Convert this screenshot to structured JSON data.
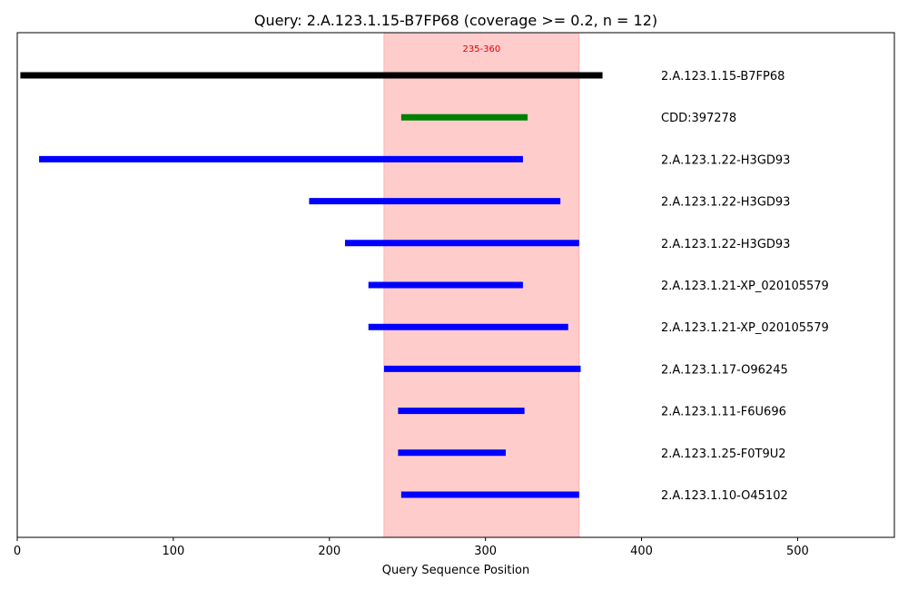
{
  "chart_data": {
    "type": "range-bars",
    "title": "Query: 2.A.123.1.15-B7FP68 (coverage >= 0.2, n = 12)",
    "xlabel": "Query Sequence Position",
    "xlim": [
      0,
      562
    ],
    "x_ticks": [
      0,
      100,
      200,
      300,
      400,
      500
    ],
    "grid": false,
    "highlight_region": {
      "label": "235-360",
      "start": 235,
      "end": 360,
      "color": "#ffcccc",
      "label_color": "#e00000"
    },
    "series": [
      {
        "label": "2.A.123.1.15-B7FP68",
        "start": 2,
        "end": 375,
        "color": "#000000"
      },
      {
        "label": "CDD:397278",
        "start": 246,
        "end": 327,
        "color": "#008000"
      },
      {
        "label": "2.A.123.1.22-H3GD93",
        "start": 14,
        "end": 324,
        "color": "#0000ff"
      },
      {
        "label": "2.A.123.1.22-H3GD93",
        "start": 187,
        "end": 348,
        "color": "#0000ff"
      },
      {
        "label": "2.A.123.1.22-H3GD93",
        "start": 210,
        "end": 360,
        "color": "#0000ff"
      },
      {
        "label": "2.A.123.1.21-XP_020105579",
        "start": 225,
        "end": 324,
        "color": "#0000ff"
      },
      {
        "label": "2.A.123.1.21-XP_020105579",
        "start": 225,
        "end": 353,
        "color": "#0000ff"
      },
      {
        "label": "2.A.123.1.17-O96245",
        "start": 235,
        "end": 361,
        "color": "#0000ff"
      },
      {
        "label": "2.A.123.1.11-F6U696",
        "start": 244,
        "end": 325,
        "color": "#0000ff"
      },
      {
        "label": "2.A.123.1.25-F0T9U2",
        "start": 244,
        "end": 313,
        "color": "#0000ff"
      },
      {
        "label": "2.A.123.1.10-O45102",
        "start": 246,
        "end": 360,
        "color": "#0000ff"
      }
    ]
  }
}
